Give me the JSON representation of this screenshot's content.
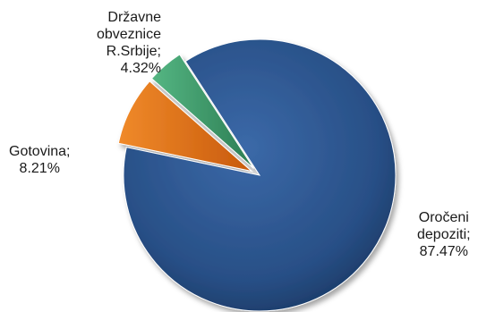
{
  "chart_data": {
    "type": "pie",
    "title": "",
    "slices": [
      {
        "label_lines": [
          "Oročeni",
          "depoziti;",
          "87.47%"
        ],
        "name": "Oročeni depoziti",
        "value": 87.47,
        "color": "#2b5592"
      },
      {
        "label_lines": [
          "Gotovina;",
          "8.21%"
        ],
        "name": "Gotovina",
        "value": 8.21,
        "color": "#e8741c"
      },
      {
        "label_lines": [
          "Državne",
          "obveznice",
          "R.Srbije;",
          "4.32%"
        ],
        "name": "Državne obveznice R.Srbije",
        "value": 4.32,
        "color": "#3f9a6a"
      }
    ]
  }
}
